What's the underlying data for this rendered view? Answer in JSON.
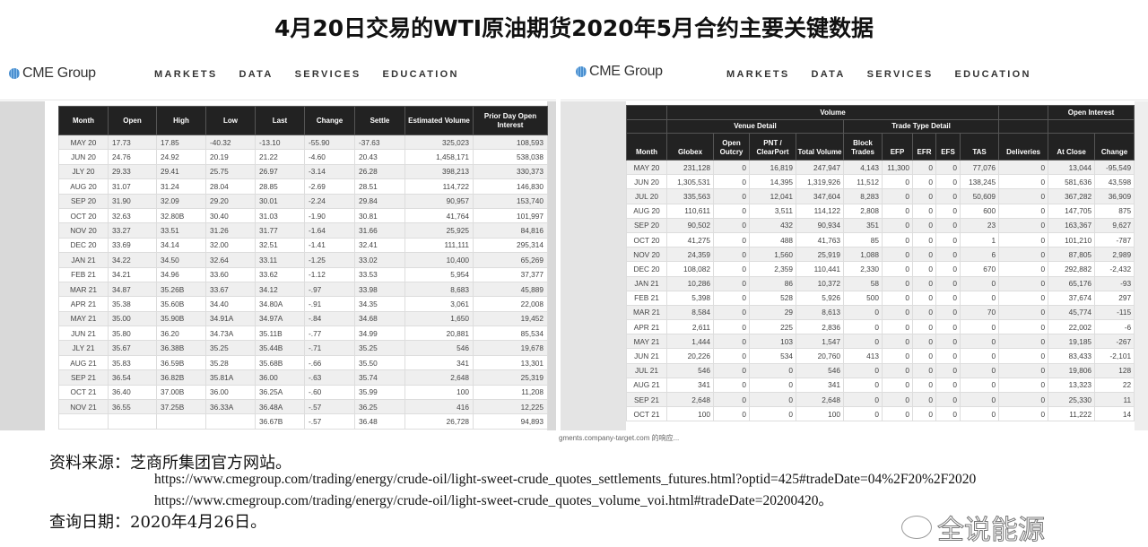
{
  "title": "4月20日交易的WTI原油期货2020年5月合约主要关键数据",
  "cme": {
    "logo": "CME Group",
    "nav": [
      "MARKETS",
      "DATA",
      "SERVICES",
      "EDUCATION"
    ]
  },
  "settlements": {
    "headers": [
      "Month",
      "Open",
      "High",
      "Low",
      "Last",
      "Change",
      "Settle",
      "Estimated Volume",
      "Prior Day Open Interest"
    ],
    "rows": [
      [
        "MAY 20",
        "17.73",
        "17.85",
        "-40.32",
        "-13.10",
        "-55.90",
        "-37.63",
        "325,023",
        "108,593"
      ],
      [
        "JUN 20",
        "24.76",
        "24.92",
        "20.19",
        "21.22",
        "-4.60",
        "20.43",
        "1,458,171",
        "538,038"
      ],
      [
        "JLY 20",
        "29.33",
        "29.41",
        "25.75",
        "26.97",
        "-3.14",
        "26.28",
        "398,213",
        "330,373"
      ],
      [
        "AUG 20",
        "31.07",
        "31.24",
        "28.04",
        "28.85",
        "-2.69",
        "28.51",
        "114,722",
        "146,830"
      ],
      [
        "SEP 20",
        "31.90",
        "32.09",
        "29.20",
        "30.01",
        "-2.24",
        "29.84",
        "90,957",
        "153,740"
      ],
      [
        "OCT 20",
        "32.63",
        "32.80B",
        "30.40",
        "31.03",
        "-1.90",
        "30.81",
        "41,764",
        "101,997"
      ],
      [
        "NOV 20",
        "33.27",
        "33.51",
        "31.26",
        "31.77",
        "-1.64",
        "31.66",
        "25,925",
        "84,816"
      ],
      [
        "DEC 20",
        "33.69",
        "34.14",
        "32.00",
        "32.51",
        "-1.41",
        "32.41",
        "111,111",
        "295,314"
      ],
      [
        "JAN 21",
        "34.22",
        "34.50",
        "32.64",
        "33.11",
        "-1.25",
        "33.02",
        "10,400",
        "65,269"
      ],
      [
        "FEB 21",
        "34.21",
        "34.96",
        "33.60",
        "33.62",
        "-1.12",
        "33.53",
        "5,954",
        "37,377"
      ],
      [
        "MAR 21",
        "34.87",
        "35.26B",
        "33.67",
        "34.12",
        "-.97",
        "33.98",
        "8,683",
        "45,889"
      ],
      [
        "APR 21",
        "35.38",
        "35.60B",
        "34.40",
        "34.80A",
        "-.91",
        "34.35",
        "3,061",
        "22,008"
      ],
      [
        "MAY 21",
        "35.00",
        "35.90B",
        "34.91A",
        "34.97A",
        "-.84",
        "34.68",
        "1,650",
        "19,452"
      ],
      [
        "JUN 21",
        "35.80",
        "36.20",
        "34.73A",
        "35.11B",
        "-.77",
        "34.99",
        "20,881",
        "85,534"
      ],
      [
        "JLY 21",
        "35.67",
        "36.38B",
        "35.25",
        "35.44B",
        "-.71",
        "35.25",
        "546",
        "19,678"
      ],
      [
        "AUG 21",
        "35.83",
        "36.59B",
        "35.28",
        "35.68B",
        "-.66",
        "35.50",
        "341",
        "13,301"
      ],
      [
        "SEP 21",
        "36.54",
        "36.82B",
        "35.81A",
        "36.00",
        "-.63",
        "35.74",
        "2,648",
        "25,319"
      ],
      [
        "OCT 21",
        "36.40",
        "37.00B",
        "36.00",
        "36.25A",
        "-.60",
        "35.99",
        "100",
        "11,208"
      ],
      [
        "NOV 21",
        "36.55",
        "37.25B",
        "36.33A",
        "36.48A",
        "-.57",
        "36.25",
        "416",
        "12,225"
      ],
      [
        "",
        "",
        "",
        "",
        "36.67B",
        "-.57",
        "36.48",
        "26,728",
        "94,893"
      ]
    ]
  },
  "volume": {
    "group_volume": "Volume",
    "group_venue": "Venue Detail",
    "group_trade": "Trade Type Detail",
    "group_oi": "Open Interest",
    "headers": [
      "Month",
      "Globex",
      "Open Outcry",
      "PNT / ClearPort",
      "Total Volume",
      "Block Trades",
      "EFP",
      "EFR",
      "EFS",
      "TAS",
      "Deliveries",
      "At Close",
      "Change"
    ],
    "rows": [
      [
        "MAY 20",
        "231,128",
        "0",
        "16,819",
        "247,947",
        "4,143",
        "11,300",
        "0",
        "0",
        "77,076",
        "0",
        "13,044",
        "-95,549"
      ],
      [
        "JUN 20",
        "1,305,531",
        "0",
        "14,395",
        "1,319,926",
        "11,512",
        "0",
        "0",
        "0",
        "138,245",
        "0",
        "581,636",
        "43,598"
      ],
      [
        "JUL 20",
        "335,563",
        "0",
        "12,041",
        "347,604",
        "8,283",
        "0",
        "0",
        "0",
        "50,609",
        "0",
        "367,282",
        "36,909"
      ],
      [
        "AUG 20",
        "110,611",
        "0",
        "3,511",
        "114,122",
        "2,808",
        "0",
        "0",
        "0",
        "600",
        "0",
        "147,705",
        "875"
      ],
      [
        "SEP 20",
        "90,502",
        "0",
        "432",
        "90,934",
        "351",
        "0",
        "0",
        "0",
        "23",
        "0",
        "163,367",
        "9,627"
      ],
      [
        "OCT 20",
        "41,275",
        "0",
        "488",
        "41,763",
        "85",
        "0",
        "0",
        "0",
        "1",
        "0",
        "101,210",
        "-787"
      ],
      [
        "NOV 20",
        "24,359",
        "0",
        "1,560",
        "25,919",
        "1,088",
        "0",
        "0",
        "0",
        "6",
        "0",
        "87,805",
        "2,989"
      ],
      [
        "DEC 20",
        "108,082",
        "0",
        "2,359",
        "110,441",
        "2,330",
        "0",
        "0",
        "0",
        "670",
        "0",
        "292,882",
        "-2,432"
      ],
      [
        "JAN 21",
        "10,286",
        "0",
        "86",
        "10,372",
        "58",
        "0",
        "0",
        "0",
        "0",
        "0",
        "65,176",
        "-93"
      ],
      [
        "FEB 21",
        "5,398",
        "0",
        "528",
        "5,926",
        "500",
        "0",
        "0",
        "0",
        "0",
        "0",
        "37,674",
        "297"
      ],
      [
        "MAR 21",
        "8,584",
        "0",
        "29",
        "8,613",
        "0",
        "0",
        "0",
        "0",
        "70",
        "0",
        "45,774",
        "-115"
      ],
      [
        "APR 21",
        "2,611",
        "0",
        "225",
        "2,836",
        "0",
        "0",
        "0",
        "0",
        "0",
        "0",
        "22,002",
        "-6"
      ],
      [
        "MAY 21",
        "1,444",
        "0",
        "103",
        "1,547",
        "0",
        "0",
        "0",
        "0",
        "0",
        "0",
        "19,185",
        "-267"
      ],
      [
        "JUN 21",
        "20,226",
        "0",
        "534",
        "20,760",
        "413",
        "0",
        "0",
        "0",
        "0",
        "0",
        "83,433",
        "-2,101"
      ],
      [
        "JUL 21",
        "546",
        "0",
        "0",
        "546",
        "0",
        "0",
        "0",
        "0",
        "0",
        "0",
        "19,806",
        "128"
      ],
      [
        "AUG 21",
        "341",
        "0",
        "0",
        "341",
        "0",
        "0",
        "0",
        "0",
        "0",
        "0",
        "13,323",
        "22"
      ],
      [
        "SEP 21",
        "2,648",
        "0",
        "0",
        "2,648",
        "0",
        "0",
        "0",
        "0",
        "0",
        "0",
        "25,330",
        "11"
      ],
      [
        "OCT 21",
        "100",
        "0",
        "0",
        "100",
        "0",
        "0",
        "0",
        "0",
        "0",
        "0",
        "11,222",
        "14"
      ]
    ]
  },
  "browser_status": "gments.company-target.com 的响应...",
  "footer": {
    "source_label": "资料来源：芝商所集团官方网站。",
    "url1": "https://www.cmegroup.com/trading/energy/crude-oil/light-sweet-crude_quotes_settlements_futures.html?optid=425#tradeDate=04%2F20%2F2020",
    "url2": "https://www.cmegroup.com/trading/energy/crude-oil/light-sweet-crude_quotes_volume_voi.html#tradeDate=20200420。",
    "query_date": "查询日期：2020年4月26日。"
  },
  "watermark": "全说能源"
}
